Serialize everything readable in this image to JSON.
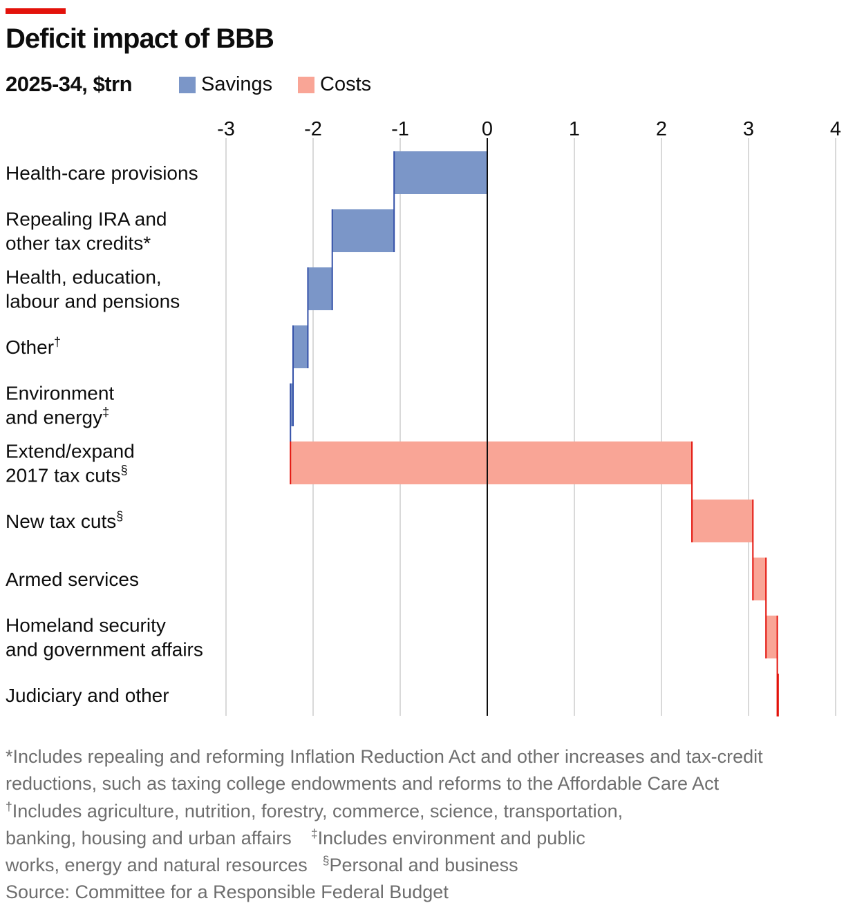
{
  "header": {
    "title": "Deficit impact of BBB",
    "subtitle": "2025-34, $trn",
    "accent_color": "#e3120b"
  },
  "legend": {
    "savings_label": "Savings",
    "costs_label": "Costs",
    "savings_color": "#7b96c8",
    "costs_color": "#f9a596",
    "savings_edge_color": "#3350a8",
    "costs_edge_color": "#e3120b"
  },
  "chart_data": {
    "type": "waterfall",
    "xlim": [
      -3,
      4
    ],
    "ticks": [
      -3,
      -2,
      -1,
      0,
      1,
      2,
      3,
      4
    ],
    "tick_labels": [
      "-3",
      "-2",
      "-1",
      "0",
      "1",
      "2",
      "3",
      "4"
    ],
    "grid": true,
    "legend_position": "top",
    "categories": [
      "Health-care provisions",
      "Repealing IRA and other tax credits*",
      "Health, education, labour and pensions",
      "Other†",
      "Environment and energy‡",
      "Extend/expand 2017 tax cuts§",
      "New tax cuts§",
      "Armed services",
      "Homeland security and government affairs",
      "Judiciary and other"
    ],
    "series": [
      {
        "name": "Deficit impact",
        "values": [
          -1.07,
          -0.71,
          -0.28,
          -0.17,
          -0.03,
          4.61,
          0.7,
          0.15,
          0.13,
          0.0
        ],
        "start": [
          0.0,
          -1.07,
          -1.78,
          -2.06,
          -2.23,
          -2.26,
          2.35,
          3.05,
          3.2,
          3.33
        ],
        "end": [
          -1.07,
          -1.78,
          -2.06,
          -2.23,
          -2.26,
          2.35,
          3.05,
          3.2,
          3.33,
          3.34
        ]
      }
    ]
  },
  "row_labels": [
    {
      "lines": [
        "Health-care provisions"
      ],
      "sup": ""
    },
    {
      "lines": [
        "Repealing IRA and",
        "other tax credits*"
      ],
      "sup": ""
    },
    {
      "lines": [
        "Health, education,",
        "labour and pensions"
      ],
      "sup": ""
    },
    {
      "lines": [
        "Other"
      ],
      "sup": "†"
    },
    {
      "lines": [
        "Environment",
        "and energy"
      ],
      "sup": "‡"
    },
    {
      "lines": [
        "Extend/expand",
        "2017 tax cuts"
      ],
      "sup": "§"
    },
    {
      "lines": [
        "New tax cuts"
      ],
      "sup": "§"
    },
    {
      "lines": [
        "Armed services"
      ],
      "sup": ""
    },
    {
      "lines": [
        "Homeland security",
        "and government affairs"
      ],
      "sup": ""
    },
    {
      "lines": [
        "Judiciary and other"
      ],
      "sup": ""
    }
  ],
  "footnotes": {
    "line1": "*Includes repealing and reforming Inflation Reduction Act and other increases and tax-credit",
    "line2": "reductions, such as taxing college endowments and reforms to the Affordable Care Act",
    "dagger_mark": "†",
    "line3": "Includes agriculture, nutrition, forestry, commerce, science, transportation,",
    "line4a": "banking, housing and urban affairs",
    "double_dagger_mark": "‡",
    "line4b": "Includes environment and public",
    "line5a": "works, energy and natural resources",
    "section_mark": "§",
    "line5b": "Personal and business",
    "source": "Source: Committee for a Responsible Federal Budget"
  }
}
